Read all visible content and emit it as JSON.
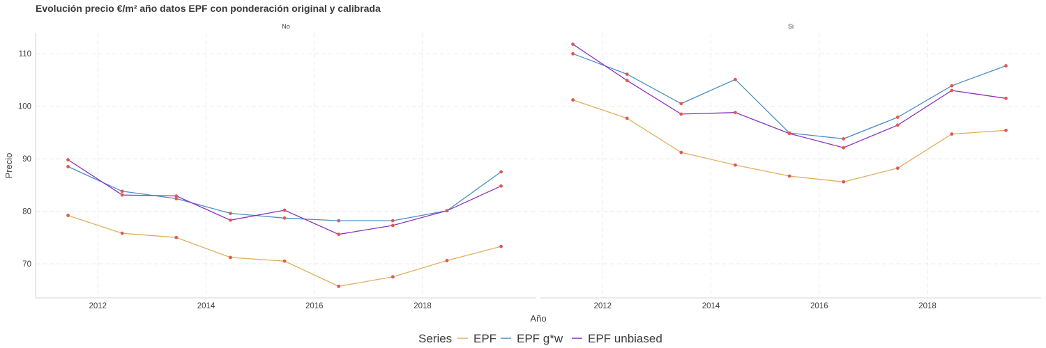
{
  "chart_data": {
    "type": "line",
    "title": "Evolución precio €/m² año datos EPF con ponderación original y calibrada",
    "xlabel": "Año",
    "ylabel": "Precio",
    "xlim": [
      2010.85,
      2020.1
    ],
    "ylim": [
      63.5,
      114.0
    ],
    "x_ticks": [
      2012,
      2014,
      2016,
      2018
    ],
    "y_ticks": [
      70,
      80,
      90,
      100,
      110
    ],
    "grid": true,
    "legend": {
      "title": "Series",
      "position": "bottom"
    },
    "series_meta": [
      {
        "name": "EPF",
        "color": "#deaf5f"
      },
      {
        "name": "EPF g*w",
        "color": "#4a8fc3"
      },
      {
        "name": "EPF unbiased",
        "color": "#8a2fc0"
      }
    ],
    "point_color": "#e0594e",
    "x": [
      2011.45,
      2012.45,
      2013.45,
      2014.45,
      2015.45,
      2016.45,
      2017.45,
      2018.45,
      2019.45
    ],
    "panels": [
      {
        "label": "No",
        "series": [
          {
            "name": "EPF",
            "values": [
              79.2,
              75.8,
              75.0,
              71.2,
              70.5,
              65.7,
              67.5,
              70.6,
              73.3
            ]
          },
          {
            "name": "EPF g*w",
            "values": [
              88.5,
              83.8,
              82.4,
              79.6,
              78.7,
              78.2,
              78.2,
              80.1,
              87.5
            ]
          },
          {
            "name": "EPF unbiased",
            "values": [
              89.8,
              83.1,
              82.9,
              78.3,
              80.2,
              75.6,
              77.3,
              80.1,
              84.8
            ]
          }
        ]
      },
      {
        "label": "Si",
        "series": [
          {
            "name": "EPF",
            "values": [
              101.2,
              97.7,
              91.2,
              88.8,
              86.7,
              85.6,
              88.2,
              94.7,
              95.4
            ]
          },
          {
            "name": "EPF g*w",
            "values": [
              110.0,
              106.1,
              100.5,
              105.1,
              94.9,
              93.8,
              97.9,
              103.9,
              107.7
            ]
          },
          {
            "name": "EPF unbiased",
            "values": [
              111.8,
              104.9,
              98.5,
              98.8,
              94.8,
              92.1,
              96.4,
              103.0,
              101.5
            ]
          }
        ]
      }
    ]
  }
}
